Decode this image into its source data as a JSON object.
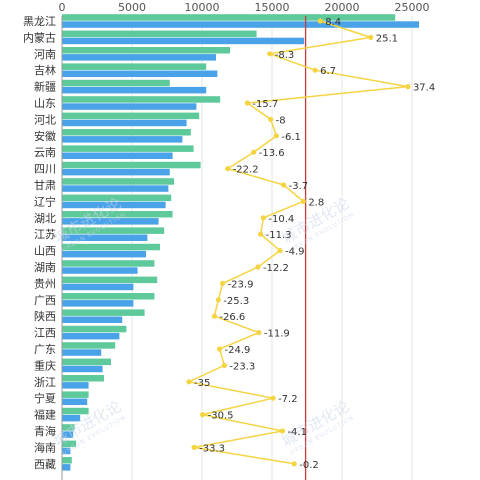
{
  "chart_data": {
    "type": "bar",
    "orientation": "horizontal",
    "categories": [
      "黑龙江",
      "内蒙古",
      "河南",
      "吉林",
      "新疆",
      "山东",
      "河北",
      "安徽",
      "云南",
      "四川",
      "甘肃",
      "辽宁",
      "湖北",
      "江苏",
      "山西",
      "湖南",
      "贵州",
      "广西",
      "陕西",
      "江西",
      "广东",
      "重庆",
      "浙江",
      "宁夏",
      "福建",
      "青海",
      "海南",
      "西藏"
    ],
    "series": [
      {
        "name": "",
        "color": "#5ec99a",
        "values": [
          23800,
          13900,
          12000,
          10300,
          7700,
          11300,
          9800,
          9200,
          9400,
          9900,
          8000,
          7800,
          7900,
          7300,
          7000,
          6600,
          6800,
          6600,
          5900,
          4600,
          3800,
          3500,
          3000,
          1900,
          1900,
          900,
          1000,
          700
        ]
      },
      {
        "name": "",
        "color": "#4aa3e8",
        "values": [
          25500,
          17300,
          11000,
          11100,
          10300,
          9600,
          8900,
          8600,
          7900,
          7700,
          7600,
          7400,
          6900,
          6100,
          6000,
          5400,
          5100,
          5100,
          4300,
          4100,
          2800,
          2900,
          1900,
          1800,
          1300,
          800,
          600,
          600
        ]
      }
    ],
    "line": {
      "name": "",
      "color": "#f5d442",
      "values": [
        8.4,
        25.1,
        -8.3,
        6.7,
        37.4,
        -15.7,
        -8,
        -6.1,
        -13.6,
        -22.2,
        -3.7,
        2.8,
        -10.4,
        -11.3,
        -4.9,
        -12.2,
        -23.9,
        -25.3,
        -26.6,
        -11.9,
        -24.9,
        -23.3,
        -35,
        -7.2,
        -30.5,
        -4.1,
        -33.3,
        -0.2
      ],
      "labels": [
        "8.4",
        "25.1",
        "-8.3",
        "6.7",
        "37.4",
        "-15.7",
        "-8",
        "-6.1",
        "-13.6",
        "-22.2",
        "-3.7",
        "2.8",
        "-10.4",
        "-11.3",
        "-4.9",
        "-12.2",
        "-23.9",
        "-25.3",
        "-26.6",
        "-11.9",
        "-24.9",
        "-23.3",
        "-35",
        "-7.2",
        "-30.5",
        "-4.1",
        "-33.3",
        "-0.2"
      ]
    },
    "x_ticks": [
      "0",
      "5000",
      "10000",
      "15000",
      "20000",
      "25000"
    ],
    "xlim": [
      0,
      27000
    ],
    "line_xlim": [
      -77,
      48
    ],
    "reference_value": 17400,
    "reference_color": "#c83a3a",
    "grid": true,
    "legend": "none"
  },
  "watermark": {
    "text": "城市进化论",
    "sub": "URBAN EVOLUTION"
  }
}
